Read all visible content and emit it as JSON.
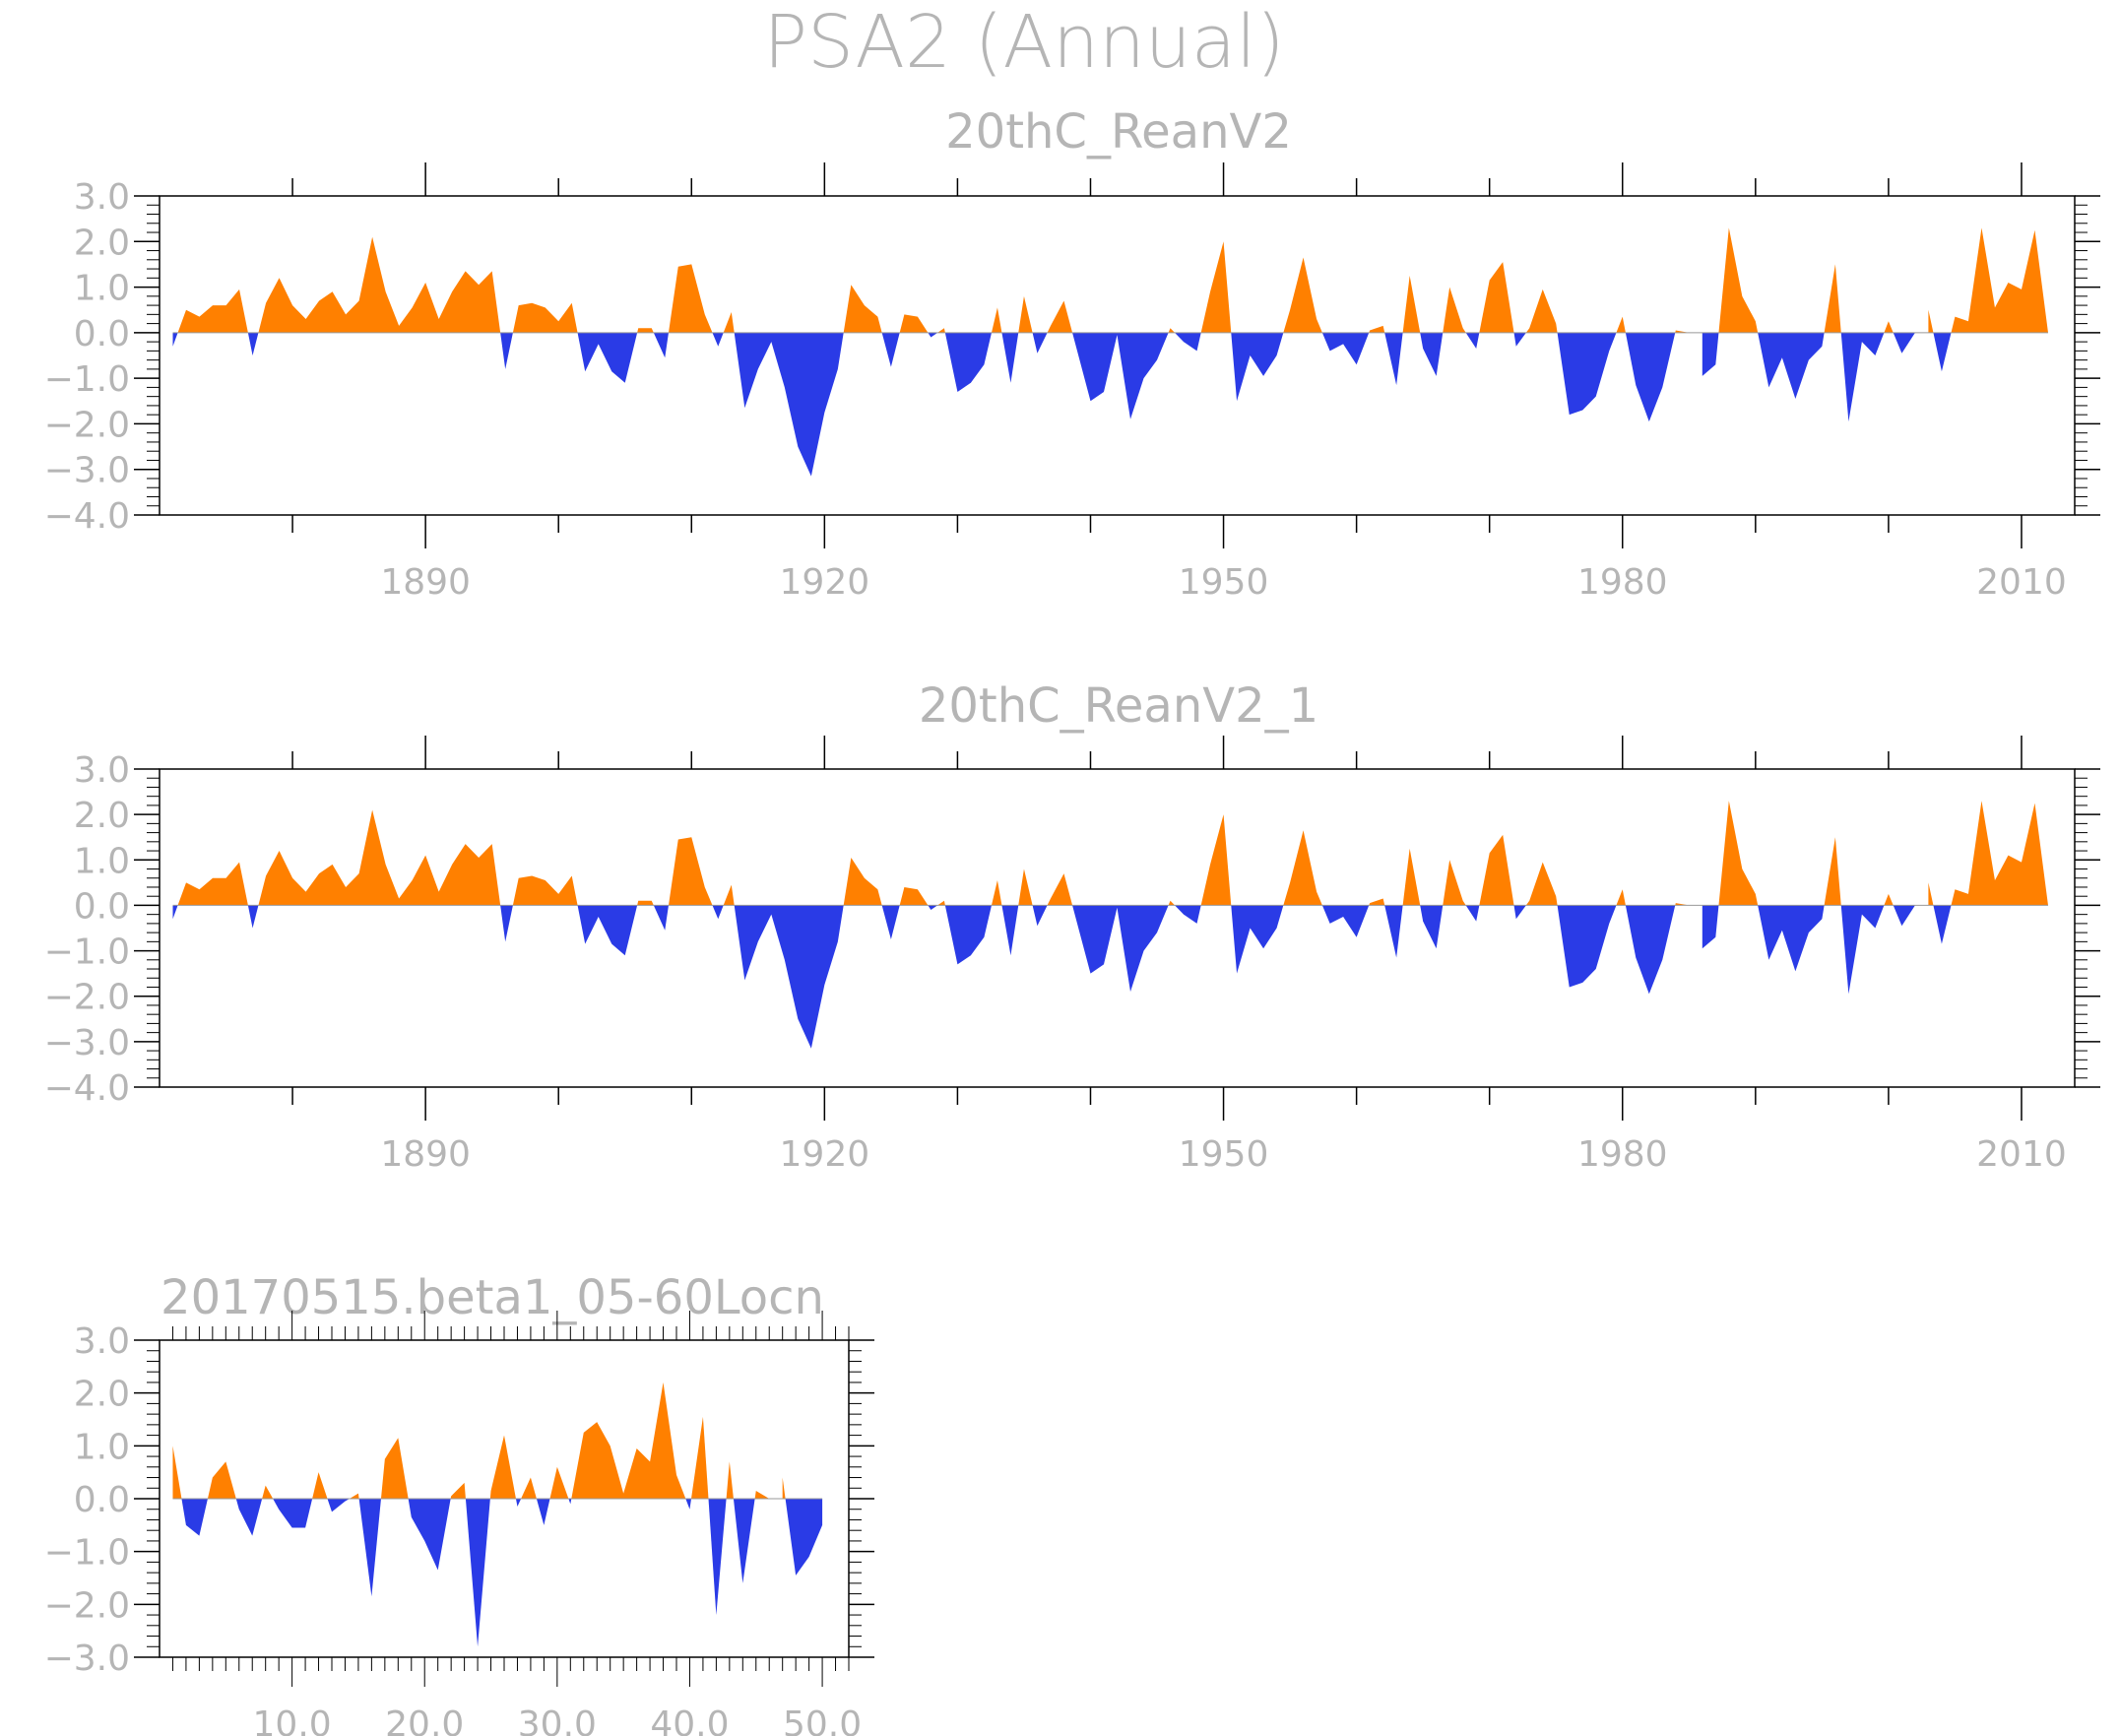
{
  "figure": {
    "title": "PSA2 (Annual)",
    "colors": {
      "positive": "#ff8000",
      "negative": "#2a3be6",
      "axis": "#000000",
      "text": "#b5b5b5"
    }
  },
  "chart_data": [
    {
      "type": "area",
      "title": "20thC_ReanV2",
      "xlabel": "",
      "ylabel": "",
      "x_start": 1871,
      "x_step": 1,
      "xlim": [
        1870,
        2014
      ],
      "ylim": [
        -4,
        3
      ],
      "y_ticks": [
        "3.0",
        "2.0",
        "1.0",
        "0.0",
        "−1.0",
        "−2.0",
        "−3.0",
        "−4.0"
      ],
      "x_ticks": [
        "1890",
        "1920",
        "1950",
        "1980",
        "2010"
      ],
      "values": [
        -0.3,
        0.5,
        0.35,
        0.6,
        0.6,
        0.95,
        -0.5,
        0.65,
        1.2,
        0.6,
        0.3,
        0.7,
        0.9,
        0.4,
        0.7,
        2.1,
        0.9,
        0.15,
        0.55,
        1.1,
        0.3,
        0.9,
        1.35,
        1.05,
        1.35,
        -0.8,
        0.6,
        0.65,
        0.55,
        0.25,
        0.65,
        -0.85,
        -0.25,
        -0.85,
        -1.1,
        0.1,
        0.1,
        -0.55,
        1.45,
        1.5,
        0.4,
        -0.3,
        0.45,
        -1.65,
        -0.8,
        -0.2,
        -1.2,
        -2.5,
        -3.15,
        -1.75,
        -0.8,
        1.05,
        0.6,
        0.35,
        -0.75,
        0.4,
        0.35,
        -0.1,
        0.1,
        -1.3,
        -1.1,
        -0.7,
        0.55,
        -1.1,
        0.8,
        -0.45,
        0.15,
        0.7,
        -0.4,
        -1.5,
        -1.3,
        -0.05,
        -1.9,
        -1.0,
        -0.6,
        0.1,
        -0.2,
        -0.4,
        0.9,
        2.0,
        -1.5,
        -0.5,
        -0.95,
        -0.5,
        0.5,
        1.65,
        0.3,
        -0.4,
        -0.25,
        -0.7,
        0.05,
        0.15,
        -1.15,
        1.25,
        -0.35,
        -0.95,
        1.0,
        0.1,
        -0.35,
        1.15,
        1.55,
        -0.3,
        0.1,
        0.95,
        0.2,
        -1.8,
        -1.7,
        -1.4,
        -0.4,
        0.35,
        -1.15,
        -1.95,
        -1.2,
        0.05,
        0.0,
        -0.95,
        -0.7,
        2.3,
        0.8,
        0.25,
        -1.2,
        -0.55,
        -1.45,
        -0.6,
        -0.3,
        1.5,
        -1.95,
        -0.2,
        -0.5,
        0.25,
        -0.45,
        0.0,
        0.5,
        -0.85,
        0.35,
        0.25,
        2.3,
        0.55,
        1.1,
        0.95,
        2.25,
        0.0
      ]
    },
    {
      "type": "area",
      "title": "20thC_ReanV2_1",
      "xlabel": "",
      "ylabel": "",
      "x_start": 1871,
      "x_step": 1,
      "xlim": [
        1870,
        2014
      ],
      "ylim": [
        -4,
        3
      ],
      "y_ticks": [
        "3.0",
        "2.0",
        "1.0",
        "0.0",
        "−1.0",
        "−2.0",
        "−3.0",
        "−4.0"
      ],
      "x_ticks": [
        "1890",
        "1920",
        "1950",
        "1980",
        "2010"
      ],
      "values": [
        -0.3,
        0.5,
        0.35,
        0.6,
        0.6,
        0.95,
        -0.5,
        0.65,
        1.2,
        0.6,
        0.3,
        0.7,
        0.9,
        0.4,
        0.7,
        2.1,
        0.9,
        0.15,
        0.55,
        1.1,
        0.3,
        0.9,
        1.35,
        1.05,
        1.35,
        -0.8,
        0.6,
        0.65,
        0.55,
        0.25,
        0.65,
        -0.85,
        -0.25,
        -0.85,
        -1.1,
        0.1,
        0.1,
        -0.55,
        1.45,
        1.5,
        0.4,
        -0.3,
        0.45,
        -1.65,
        -0.8,
        -0.2,
        -1.2,
        -2.5,
        -3.15,
        -1.75,
        -0.8,
        1.05,
        0.6,
        0.35,
        -0.75,
        0.4,
        0.35,
        -0.1,
        0.1,
        -1.3,
        -1.1,
        -0.7,
        0.55,
        -1.1,
        0.8,
        -0.45,
        0.15,
        0.7,
        -0.4,
        -1.5,
        -1.3,
        -0.05,
        -1.9,
        -1.0,
        -0.6,
        0.1,
        -0.2,
        -0.4,
        0.9,
        2.0,
        -1.5,
        -0.5,
        -0.95,
        -0.5,
        0.5,
        1.65,
        0.3,
        -0.4,
        -0.25,
        -0.7,
        0.05,
        0.15,
        -1.15,
        1.25,
        -0.35,
        -0.95,
        1.0,
        0.1,
        -0.35,
        1.15,
        1.55,
        -0.3,
        0.1,
        0.95,
        0.2,
        -1.8,
        -1.7,
        -1.4,
        -0.4,
        0.35,
        -1.15,
        -1.95,
        -1.2,
        0.05,
        0.0,
        -0.95,
        -0.7,
        2.3,
        0.8,
        0.25,
        -1.2,
        -0.55,
        -1.45,
        -0.6,
        -0.3,
        1.5,
        -1.95,
        -0.2,
        -0.5,
        0.25,
        -0.45,
        0.0,
        0.5,
        -0.85,
        0.35,
        0.25,
        2.3,
        0.55,
        1.1,
        0.95,
        2.25,
        0.0
      ]
    },
    {
      "type": "area",
      "title": "20170515.beta1_05-60Locn",
      "xlabel": "",
      "ylabel": "",
      "x_start": 1,
      "x_step": 1,
      "xlim": [
        0,
        52
      ],
      "ylim": [
        -3,
        3
      ],
      "y_ticks": [
        "3.0",
        "2.0",
        "1.0",
        "0.0",
        "−1.0",
        "−2.0",
        "−3.0"
      ],
      "x_ticks": [
        "10.0",
        "20.0",
        "30.0",
        "40.0",
        "50.0"
      ],
      "values": [
        1.0,
        -0.5,
        -0.7,
        0.4,
        0.7,
        -0.2,
        -0.7,
        0.25,
        -0.2,
        -0.55,
        -0.55,
        0.5,
        -0.25,
        -0.05,
        0.1,
        -1.85,
        0.75,
        1.15,
        -0.35,
        -0.8,
        -1.35,
        0.05,
        0.3,
        -2.8,
        0.15,
        1.2,
        -0.15,
        0.4,
        -0.5,
        0.6,
        -0.1,
        1.25,
        1.45,
        1.0,
        0.1,
        0.95,
        0.7,
        2.2,
        0.45,
        -0.2,
        1.55,
        -2.2,
        0.7,
        -1.6,
        0.15,
        0.0,
        0.4,
        -1.45,
        -1.1,
        -0.5
      ]
    }
  ]
}
